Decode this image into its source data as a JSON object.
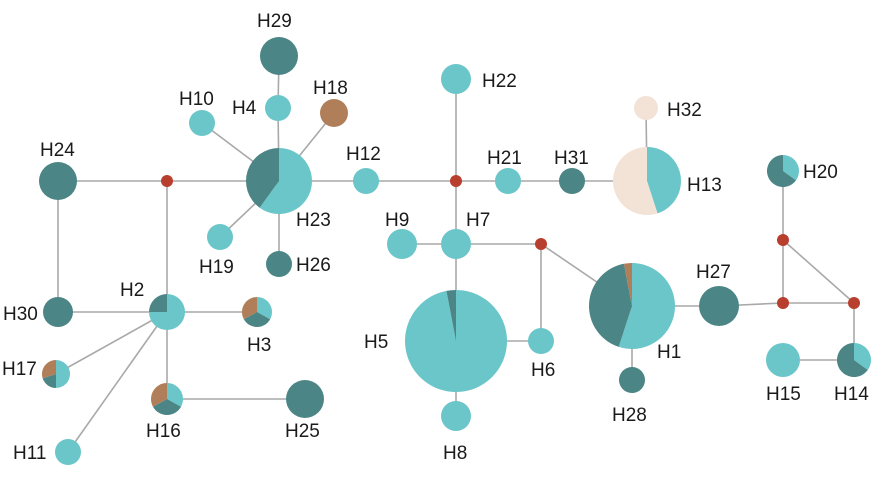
{
  "colors": {
    "light": "#6bc6c9",
    "dark": "#4b8585",
    "brown": "#b07f5a",
    "pale": "#f3e2d6",
    "median": "#b83e2d",
    "edge": "#a9a9a9"
  },
  "haplotypes": [
    {
      "id": "H1",
      "label": "H1",
      "parts": [
        {
          "c": "light",
          "v": 0.55
        },
        {
          "c": "dark",
          "v": 0.42
        },
        {
          "c": "brown",
          "v": 0.03
        }
      ]
    },
    {
      "id": "H2",
      "label": "H2",
      "parts": [
        {
          "c": "light",
          "v": 0.75
        },
        {
          "c": "dark",
          "v": 0.25
        }
      ]
    },
    {
      "id": "H3",
      "label": "H3",
      "parts": [
        {
          "c": "light",
          "v": 0.33
        },
        {
          "c": "dark",
          "v": 0.34
        },
        {
          "c": "brown",
          "v": 0.33
        }
      ]
    },
    {
      "id": "H4",
      "label": "H4",
      "parts": [
        {
          "c": "light",
          "v": 1
        }
      ]
    },
    {
      "id": "H5",
      "label": "H5",
      "parts": [
        {
          "c": "light",
          "v": 0.97
        },
        {
          "c": "dark",
          "v": 0.03
        }
      ]
    },
    {
      "id": "H6",
      "label": "H6",
      "parts": [
        {
          "c": "light",
          "v": 1
        }
      ]
    },
    {
      "id": "H7",
      "label": "H7",
      "parts": [
        {
          "c": "light",
          "v": 1
        }
      ]
    },
    {
      "id": "H8",
      "label": "H8",
      "parts": [
        {
          "c": "light",
          "v": 1
        }
      ]
    },
    {
      "id": "H9",
      "label": "H9",
      "parts": [
        {
          "c": "light",
          "v": 1
        }
      ]
    },
    {
      "id": "H10",
      "label": "H10",
      "parts": [
        {
          "c": "light",
          "v": 1
        }
      ]
    },
    {
      "id": "H11",
      "label": "H11",
      "parts": [
        {
          "c": "light",
          "v": 1
        }
      ]
    },
    {
      "id": "H12",
      "label": "H12",
      "parts": [
        {
          "c": "light",
          "v": 1
        }
      ]
    },
    {
      "id": "H13",
      "label": "H13",
      "parts": [
        {
          "c": "light",
          "v": 0.45
        },
        {
          "c": "pale",
          "v": 0.55
        }
      ]
    },
    {
      "id": "H14",
      "label": "H14",
      "parts": [
        {
          "c": "light",
          "v": 0.35
        },
        {
          "c": "dark",
          "v": 0.65
        }
      ]
    },
    {
      "id": "H15",
      "label": "H15",
      "parts": [
        {
          "c": "light",
          "v": 1
        }
      ]
    },
    {
      "id": "H16",
      "label": "H16",
      "parts": [
        {
          "c": "light",
          "v": 0.33
        },
        {
          "c": "dark",
          "v": 0.34
        },
        {
          "c": "brown",
          "v": 0.33
        }
      ]
    },
    {
      "id": "H17",
      "label": "H17",
      "parts": [
        {
          "c": "light",
          "v": 0.5
        },
        {
          "c": "dark",
          "v": 0.2
        },
        {
          "c": "brown",
          "v": 0.3
        }
      ]
    },
    {
      "id": "H18",
      "label": "H18",
      "parts": [
        {
          "c": "brown",
          "v": 1
        }
      ]
    },
    {
      "id": "H19",
      "label": "H19",
      "parts": [
        {
          "c": "light",
          "v": 1
        }
      ]
    },
    {
      "id": "H20",
      "label": "H20",
      "parts": [
        {
          "c": "light",
          "v": 0.35
        },
        {
          "c": "dark",
          "v": 0.65
        }
      ]
    },
    {
      "id": "H21",
      "label": "H21",
      "parts": [
        {
          "c": "light",
          "v": 1
        }
      ]
    },
    {
      "id": "H22",
      "label": "H22",
      "parts": [
        {
          "c": "light",
          "v": 1
        }
      ]
    },
    {
      "id": "H23",
      "label": "H23",
      "parts": [
        {
          "c": "light",
          "v": 0.6
        },
        {
          "c": "dark",
          "v": 0.4
        }
      ]
    },
    {
      "id": "H24",
      "label": "H24",
      "parts": [
        {
          "c": "dark",
          "v": 1
        }
      ]
    },
    {
      "id": "H25",
      "label": "H25",
      "parts": [
        {
          "c": "dark",
          "v": 1
        }
      ]
    },
    {
      "id": "H26",
      "label": "H26",
      "parts": [
        {
          "c": "dark",
          "v": 1
        }
      ]
    },
    {
      "id": "H27",
      "label": "H27",
      "parts": [
        {
          "c": "dark",
          "v": 1
        }
      ]
    },
    {
      "id": "H28",
      "label": "H28",
      "parts": [
        {
          "c": "dark",
          "v": 1
        }
      ]
    },
    {
      "id": "H29",
      "label": "H29",
      "parts": [
        {
          "c": "dark",
          "v": 1
        }
      ]
    },
    {
      "id": "H30",
      "label": "H30",
      "parts": [
        {
          "c": "dark",
          "v": 1
        }
      ]
    },
    {
      "id": "H31",
      "label": "H31",
      "parts": [
        {
          "c": "dark",
          "v": 1
        }
      ]
    },
    {
      "id": "H32",
      "label": "H32",
      "parts": [
        {
          "c": "pale",
          "v": 1
        }
      ]
    }
  ],
  "median_vectors": [
    "mv1",
    "mv2",
    "mv3",
    "mv4",
    "mv5",
    "mv6",
    "mv7"
  ],
  "edges": [
    [
      "H24",
      "mv1"
    ],
    [
      "mv1",
      "H23"
    ],
    [
      "mv1",
      "H2"
    ],
    [
      "H24",
      "H30"
    ],
    [
      "H30",
      "H2"
    ],
    [
      "H2",
      "H3"
    ],
    [
      "H2",
      "H17"
    ],
    [
      "H2",
      "H11"
    ],
    [
      "H2",
      "H16"
    ],
    [
      "H16",
      "H25"
    ],
    [
      "H23",
      "H4"
    ],
    [
      "H4",
      "H29"
    ],
    [
      "H23",
      "H10"
    ],
    [
      "H23",
      "H18"
    ],
    [
      "H23",
      "H19"
    ],
    [
      "H23",
      "H26"
    ],
    [
      "H23",
      "H12"
    ],
    [
      "H12",
      "mv2"
    ],
    [
      "mv2",
      "H22"
    ],
    [
      "mv2",
      "H21"
    ],
    [
      "H21",
      "H31"
    ],
    [
      "H31",
      "H13"
    ],
    [
      "H13",
      "H32"
    ],
    [
      "mv2",
      "H7"
    ],
    [
      "H7",
      "H9"
    ],
    [
      "H7",
      "H5"
    ],
    [
      "H5",
      "H8"
    ],
    [
      "H5",
      "H6"
    ],
    [
      "H7",
      "mv3"
    ],
    [
      "mv3",
      "H6"
    ],
    [
      "mv3",
      "H1"
    ],
    [
      "H1",
      "H28"
    ],
    [
      "H1",
      "H27"
    ],
    [
      "H27",
      "mv4"
    ],
    [
      "mv4",
      "mv5"
    ],
    [
      "mv5",
      "H20"
    ],
    [
      "mv5",
      "mv6"
    ],
    [
      "mv4",
      "mv6"
    ],
    [
      "mv6",
      "H14"
    ],
    [
      "H14",
      "H15"
    ]
  ]
}
